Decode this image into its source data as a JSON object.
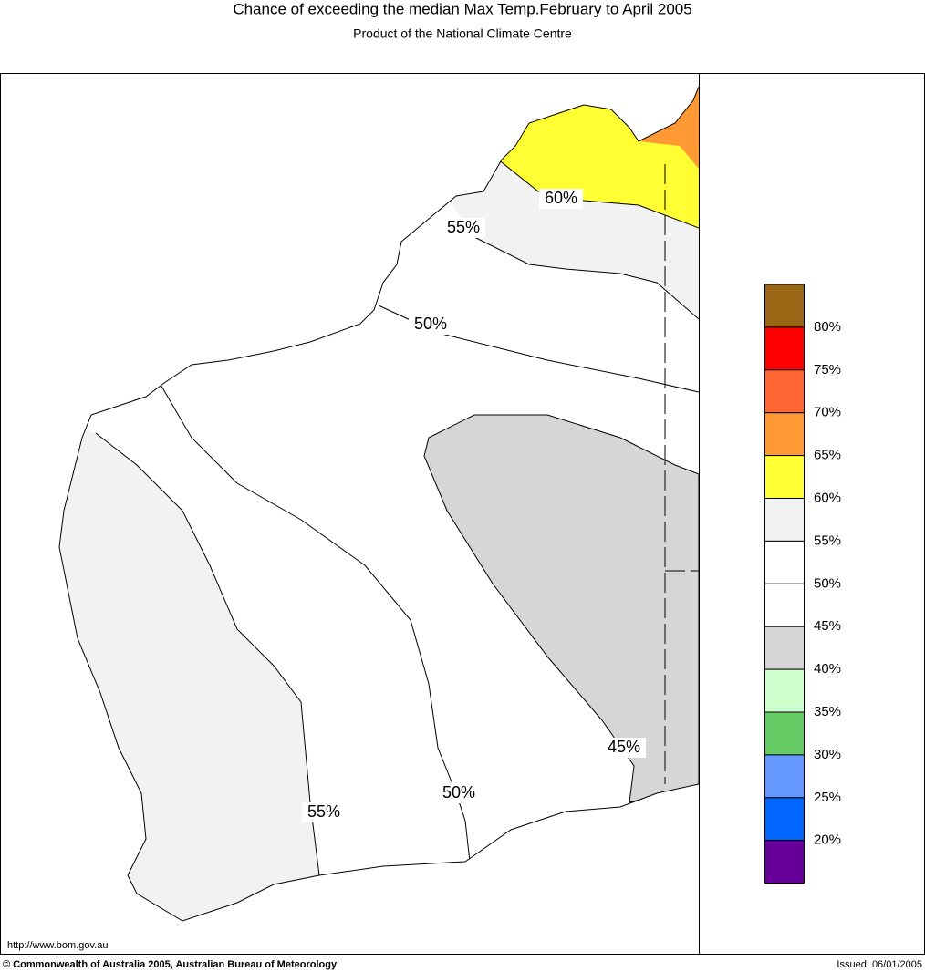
{
  "title": "Chance of exceeding the median Max Temp.February to April 2005",
  "subtitle": "Product of the National Climate Centre",
  "contour_labels": [
    "60%",
    "55%",
    "50%",
    "45%",
    "55%",
    "50%"
  ],
  "legend": {
    "colors": [
      "#996615",
      "#ff0000",
      "#ff6633",
      "#ff9933",
      "#ffff33",
      "#f2f2f2",
      "#ffffff",
      "#ffffff",
      "#d6d6d6",
      "#ccffcc",
      "#66cc66",
      "#6699ff",
      "#0066ff",
      "#660099"
    ],
    "labels": [
      "80%",
      "75%",
      "70%",
      "65%",
      "60%",
      "55%",
      "50%",
      "45%",
      "40%",
      "35%",
      "30%",
      "25%",
      "20%"
    ]
  },
  "footer": {
    "url": "http://www.bom.gov.au",
    "copyright": "© Commonwealth of Australia 2005, Australian Bureau of Meteorology",
    "issued": "Issued: 06/01/2005"
  }
}
